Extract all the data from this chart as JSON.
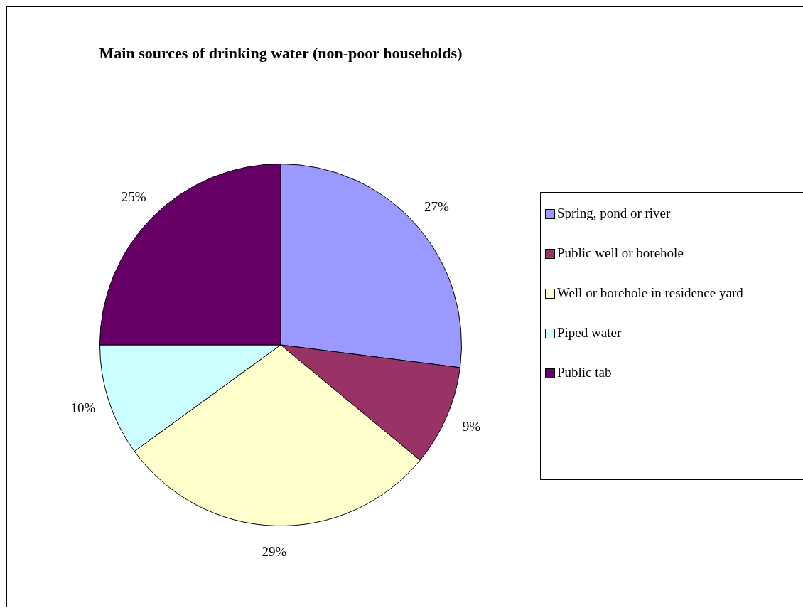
{
  "chart_data": {
    "type": "pie",
    "title": "Main sources of drinking water (non-poor households)",
    "categories": [
      "Spring, pond or river",
      "Public well or borehole",
      "Well or borehole in residence yard",
      "Piped water",
      "Public tab"
    ],
    "values": [
      27,
      9,
      29,
      10,
      25
    ],
    "value_labels": [
      "27%",
      "9%",
      "29%",
      "10%",
      "25%"
    ],
    "colors": [
      "#9999ff",
      "#993366",
      "#ffffcc",
      "#ccffff",
      "#660066"
    ],
    "legend": "right"
  }
}
